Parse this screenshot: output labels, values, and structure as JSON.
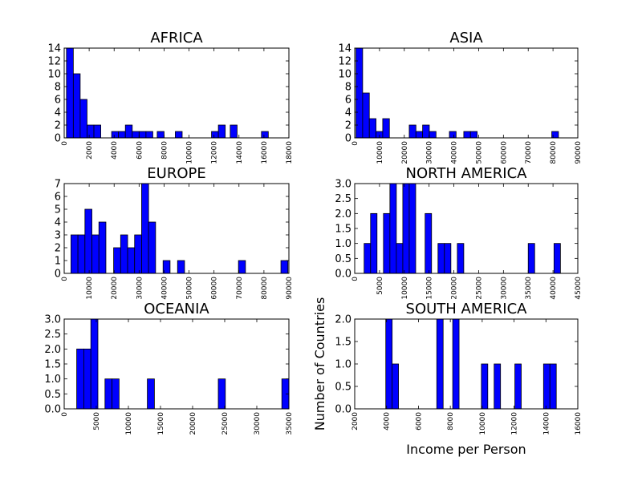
{
  "x_label": "Income per Person",
  "y_label": "Number of Countries",
  "bar_color": "#0000ff",
  "chart_data": [
    {
      "type": "bar",
      "title": "AFRICA",
      "xlim": [
        0,
        18000
      ],
      "ylim": [
        0,
        14
      ],
      "x_ticks": [
        "0",
        "2000",
        "4000",
        "6000",
        "8000",
        "10000",
        "12000",
        "14000",
        "16000",
        "18000"
      ],
      "y_ticks": [
        "0",
        "2",
        "4",
        "6",
        "8",
        "10",
        "12",
        "14"
      ],
      "bars": [
        {
          "x0": 180,
          "x1": 730,
          "value": 14
        },
        {
          "x0": 730,
          "x1": 1280,
          "value": 10
        },
        {
          "x0": 1280,
          "x1": 1830,
          "value": 6
        },
        {
          "x0": 1830,
          "x1": 2380,
          "value": 2
        },
        {
          "x0": 2380,
          "x1": 2930,
          "value": 2
        },
        {
          "x0": 3800,
          "x1": 4350,
          "value": 1
        },
        {
          "x0": 4350,
          "x1": 4900,
          "value": 1
        },
        {
          "x0": 4900,
          "x1": 5450,
          "value": 2
        },
        {
          "x0": 5450,
          "x1": 6000,
          "value": 1
        },
        {
          "x0": 6000,
          "x1": 6550,
          "value": 1
        },
        {
          "x0": 6550,
          "x1": 7100,
          "value": 1
        },
        {
          "x0": 7450,
          "x1": 8000,
          "value": 1
        },
        {
          "x0": 8900,
          "x1": 9450,
          "value": 1
        },
        {
          "x0": 11800,
          "x1": 12350,
          "value": 1
        },
        {
          "x0": 12350,
          "x1": 12900,
          "value": 2
        },
        {
          "x0": 13300,
          "x1": 13850,
          "value": 2
        },
        {
          "x0": 15800,
          "x1": 16350,
          "value": 1
        }
      ]
    },
    {
      "type": "bar",
      "title": "ASIA",
      "xlim": [
        0,
        90000
      ],
      "ylim": [
        0,
        14
      ],
      "x_ticks": [
        "0",
        "10000",
        "20000",
        "30000",
        "40000",
        "50000",
        "60000",
        "70000",
        "80000",
        "90000"
      ],
      "y_ticks": [
        "0",
        "2",
        "4",
        "6",
        "8",
        "10",
        "12",
        "14"
      ],
      "bars": [
        {
          "x0": 500,
          "x1": 3200,
          "value": 14
        },
        {
          "x0": 3200,
          "x1": 5900,
          "value": 7
        },
        {
          "x0": 5900,
          "x1": 8600,
          "value": 3
        },
        {
          "x0": 8600,
          "x1": 11300,
          "value": 1
        },
        {
          "x0": 11300,
          "x1": 14000,
          "value": 3
        },
        {
          "x0": 22000,
          "x1": 24700,
          "value": 2
        },
        {
          "x0": 24700,
          "x1": 27400,
          "value": 1
        },
        {
          "x0": 27400,
          "x1": 30100,
          "value": 2
        },
        {
          "x0": 30100,
          "x1": 32800,
          "value": 1
        },
        {
          "x0": 38200,
          "x1": 40900,
          "value": 1
        },
        {
          "x0": 44000,
          "x1": 46700,
          "value": 1
        },
        {
          "x0": 46700,
          "x1": 49400,
          "value": 1
        },
        {
          "x0": 79500,
          "x1": 82200,
          "value": 1
        }
      ]
    },
    {
      "type": "bar",
      "title": "EUROPE",
      "xlim": [
        0,
        90000
      ],
      "ylim": [
        0,
        7
      ],
      "x_ticks": [
        "0",
        "10000",
        "20000",
        "30000",
        "40000",
        "50000",
        "60000",
        "70000",
        "80000",
        "90000"
      ],
      "y_ticks": [
        "0",
        "1",
        "2",
        "3",
        "4",
        "5",
        "6",
        "7"
      ],
      "bars": [
        {
          "x0": 2700,
          "x1": 5500,
          "value": 3
        },
        {
          "x0": 5500,
          "x1": 8300,
          "value": 3
        },
        {
          "x0": 8300,
          "x1": 11100,
          "value": 5
        },
        {
          "x0": 11100,
          "x1": 13900,
          "value": 3
        },
        {
          "x0": 13900,
          "x1": 16700,
          "value": 4
        },
        {
          "x0": 19800,
          "x1": 22600,
          "value": 2
        },
        {
          "x0": 22600,
          "x1": 25400,
          "value": 3
        },
        {
          "x0": 25400,
          "x1": 28200,
          "value": 2
        },
        {
          "x0": 28200,
          "x1": 31000,
          "value": 3
        },
        {
          "x0": 31000,
          "x1": 33800,
          "value": 7
        },
        {
          "x0": 33800,
          "x1": 36600,
          "value": 4
        },
        {
          "x0": 39600,
          "x1": 42400,
          "value": 1
        },
        {
          "x0": 45400,
          "x1": 48200,
          "value": 1
        },
        {
          "x0": 69800,
          "x1": 72600,
          "value": 1
        },
        {
          "x0": 86800,
          "x1": 89600,
          "value": 1
        }
      ]
    },
    {
      "type": "bar",
      "title": "NORTH AMERICA",
      "xlim": [
        0,
        45000
      ],
      "ylim": [
        0,
        3
      ],
      "x_ticks": [
        "0",
        "5000",
        "10000",
        "15000",
        "20000",
        "25000",
        "30000",
        "35000",
        "40000",
        "45000"
      ],
      "y_ticks": [
        "0.0",
        "0.5",
        "1.0",
        "1.5",
        "2.0",
        "2.5",
        "3.0"
      ],
      "bars": [
        {
          "x0": 1900,
          "x1": 3200,
          "value": 1
        },
        {
          "x0": 3200,
          "x1": 4500,
          "value": 2
        },
        {
          "x0": 5800,
          "x1": 7100,
          "value": 2
        },
        {
          "x0": 7100,
          "x1": 8400,
          "value": 3
        },
        {
          "x0": 8400,
          "x1": 9700,
          "value": 1
        },
        {
          "x0": 9700,
          "x1": 11000,
          "value": 3
        },
        {
          "x0": 11000,
          "x1": 12300,
          "value": 3
        },
        {
          "x0": 14200,
          "x1": 15500,
          "value": 2
        },
        {
          "x0": 16800,
          "x1": 18100,
          "value": 1
        },
        {
          "x0": 18100,
          "x1": 19400,
          "value": 1
        },
        {
          "x0": 20700,
          "x1": 22000,
          "value": 1
        },
        {
          "x0": 35000,
          "x1": 36300,
          "value": 1
        },
        {
          "x0": 40200,
          "x1": 41500,
          "value": 1
        }
      ]
    },
    {
      "type": "bar",
      "title": "OCEANIA",
      "xlim": [
        0,
        35000
      ],
      "ylim": [
        0,
        3
      ],
      "x_ticks": [
        "0",
        "5000",
        "10000",
        "15000",
        "20000",
        "25000",
        "30000",
        "35000"
      ],
      "y_ticks": [
        "0.0",
        "0.5",
        "1.0",
        "1.5",
        "2.0",
        "2.5",
        "3.0"
      ],
      "bars": [
        {
          "x0": 1950,
          "x1": 3050,
          "value": 2
        },
        {
          "x0": 3050,
          "x1": 4150,
          "value": 2
        },
        {
          "x0": 4150,
          "x1": 5250,
          "value": 3
        },
        {
          "x0": 6350,
          "x1": 7450,
          "value": 1
        },
        {
          "x0": 7450,
          "x1": 8550,
          "value": 1
        },
        {
          "x0": 12950,
          "x1": 14050,
          "value": 1
        },
        {
          "x0": 24000,
          "x1": 25100,
          "value": 1
        },
        {
          "x0": 33900,
          "x1": 35000,
          "value": 1
        }
      ]
    },
    {
      "type": "bar",
      "title": "SOUTH AMERICA",
      "xlim": [
        2000,
        16000
      ],
      "ylim": [
        0,
        2
      ],
      "x_ticks": [
        "2000",
        "4000",
        "6000",
        "8000",
        "10000",
        "12000",
        "14000",
        "16000"
      ],
      "y_ticks": [
        "0.0",
        "0.5",
        "1.0",
        "1.5",
        "2.0"
      ],
      "bars": [
        {
          "x0": 3950,
          "x1": 4350,
          "value": 2
        },
        {
          "x0": 4350,
          "x1": 4750,
          "value": 1
        },
        {
          "x0": 7150,
          "x1": 7550,
          "value": 2
        },
        {
          "x0": 8150,
          "x1": 8550,
          "value": 2
        },
        {
          "x0": 9950,
          "x1": 10350,
          "value": 1
        },
        {
          "x0": 10750,
          "x1": 11150,
          "value": 1
        },
        {
          "x0": 12050,
          "x1": 12450,
          "value": 1
        },
        {
          "x0": 13850,
          "x1": 14250,
          "value": 1
        },
        {
          "x0": 14250,
          "x1": 14650,
          "value": 1
        }
      ]
    }
  ]
}
